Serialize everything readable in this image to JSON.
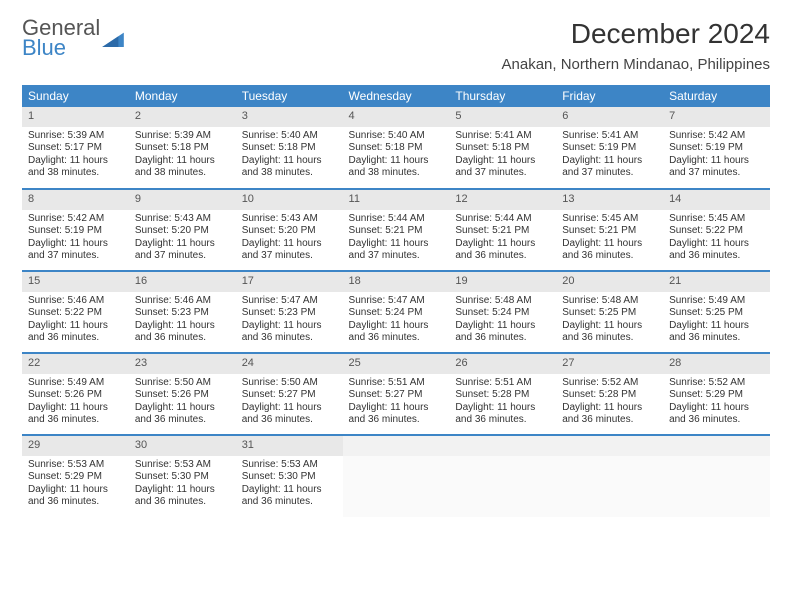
{
  "logo": {
    "line1": "General",
    "line2": "Blue"
  },
  "title": "December 2024",
  "location": "Anakan, Northern Mindanao, Philippines",
  "colors": {
    "header_bg": "#3d85c6",
    "header_fg": "#ffffff",
    "daynum_bg": "#e8e8e8",
    "rule": "#3d85c6"
  },
  "dow": [
    "Sunday",
    "Monday",
    "Tuesday",
    "Wednesday",
    "Thursday",
    "Friday",
    "Saturday"
  ],
  "weeks": [
    [
      {
        "n": "1",
        "sr": "5:39 AM",
        "ss": "5:17 PM",
        "dl": "11 hours and 38 minutes."
      },
      {
        "n": "2",
        "sr": "5:39 AM",
        "ss": "5:18 PM",
        "dl": "11 hours and 38 minutes."
      },
      {
        "n": "3",
        "sr": "5:40 AM",
        "ss": "5:18 PM",
        "dl": "11 hours and 38 minutes."
      },
      {
        "n": "4",
        "sr": "5:40 AM",
        "ss": "5:18 PM",
        "dl": "11 hours and 38 minutes."
      },
      {
        "n": "5",
        "sr": "5:41 AM",
        "ss": "5:18 PM",
        "dl": "11 hours and 37 minutes."
      },
      {
        "n": "6",
        "sr": "5:41 AM",
        "ss": "5:19 PM",
        "dl": "11 hours and 37 minutes."
      },
      {
        "n": "7",
        "sr": "5:42 AM",
        "ss": "5:19 PM",
        "dl": "11 hours and 37 minutes."
      }
    ],
    [
      {
        "n": "8",
        "sr": "5:42 AM",
        "ss": "5:19 PM",
        "dl": "11 hours and 37 minutes."
      },
      {
        "n": "9",
        "sr": "5:43 AM",
        "ss": "5:20 PM",
        "dl": "11 hours and 37 minutes."
      },
      {
        "n": "10",
        "sr": "5:43 AM",
        "ss": "5:20 PM",
        "dl": "11 hours and 37 minutes."
      },
      {
        "n": "11",
        "sr": "5:44 AM",
        "ss": "5:21 PM",
        "dl": "11 hours and 37 minutes."
      },
      {
        "n": "12",
        "sr": "5:44 AM",
        "ss": "5:21 PM",
        "dl": "11 hours and 36 minutes."
      },
      {
        "n": "13",
        "sr": "5:45 AM",
        "ss": "5:21 PM",
        "dl": "11 hours and 36 minutes."
      },
      {
        "n": "14",
        "sr": "5:45 AM",
        "ss": "5:22 PM",
        "dl": "11 hours and 36 minutes."
      }
    ],
    [
      {
        "n": "15",
        "sr": "5:46 AM",
        "ss": "5:22 PM",
        "dl": "11 hours and 36 minutes."
      },
      {
        "n": "16",
        "sr": "5:46 AM",
        "ss": "5:23 PM",
        "dl": "11 hours and 36 minutes."
      },
      {
        "n": "17",
        "sr": "5:47 AM",
        "ss": "5:23 PM",
        "dl": "11 hours and 36 minutes."
      },
      {
        "n": "18",
        "sr": "5:47 AM",
        "ss": "5:24 PM",
        "dl": "11 hours and 36 minutes."
      },
      {
        "n": "19",
        "sr": "5:48 AM",
        "ss": "5:24 PM",
        "dl": "11 hours and 36 minutes."
      },
      {
        "n": "20",
        "sr": "5:48 AM",
        "ss": "5:25 PM",
        "dl": "11 hours and 36 minutes."
      },
      {
        "n": "21",
        "sr": "5:49 AM",
        "ss": "5:25 PM",
        "dl": "11 hours and 36 minutes."
      }
    ],
    [
      {
        "n": "22",
        "sr": "5:49 AM",
        "ss": "5:26 PM",
        "dl": "11 hours and 36 minutes."
      },
      {
        "n": "23",
        "sr": "5:50 AM",
        "ss": "5:26 PM",
        "dl": "11 hours and 36 minutes."
      },
      {
        "n": "24",
        "sr": "5:50 AM",
        "ss": "5:27 PM",
        "dl": "11 hours and 36 minutes."
      },
      {
        "n": "25",
        "sr": "5:51 AM",
        "ss": "5:27 PM",
        "dl": "11 hours and 36 minutes."
      },
      {
        "n": "26",
        "sr": "5:51 AM",
        "ss": "5:28 PM",
        "dl": "11 hours and 36 minutes."
      },
      {
        "n": "27",
        "sr": "5:52 AM",
        "ss": "5:28 PM",
        "dl": "11 hours and 36 minutes."
      },
      {
        "n": "28",
        "sr": "5:52 AM",
        "ss": "5:29 PM",
        "dl": "11 hours and 36 minutes."
      }
    ],
    [
      {
        "n": "29",
        "sr": "5:53 AM",
        "ss": "5:29 PM",
        "dl": "11 hours and 36 minutes."
      },
      {
        "n": "30",
        "sr": "5:53 AM",
        "ss": "5:30 PM",
        "dl": "11 hours and 36 minutes."
      },
      {
        "n": "31",
        "sr": "5:53 AM",
        "ss": "5:30 PM",
        "dl": "11 hours and 36 minutes."
      },
      null,
      null,
      null,
      null
    ]
  ],
  "labels": {
    "sunrise": "Sunrise:",
    "sunset": "Sunset:",
    "daylight": "Daylight:"
  }
}
